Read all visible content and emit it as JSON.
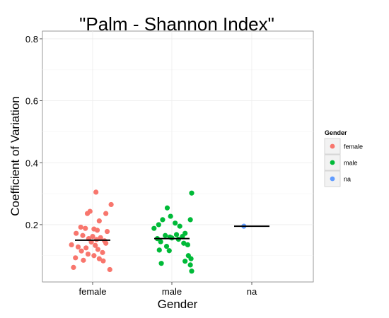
{
  "chart_data": {
    "type": "scatter",
    "title": "\"Palm - Shannon Index\"",
    "xlabel": "Gender",
    "ylabel": "Coefficient of Variation",
    "categories": [
      "female",
      "male",
      "na"
    ],
    "ylim": [
      0.015,
      0.825
    ],
    "yticks": [
      0.2,
      0.4,
      0.6,
      0.8
    ],
    "ytick_labels": [
      "0.2",
      "0.4",
      "0.6",
      "0.8"
    ],
    "grid": true,
    "legend": {
      "title": "Gender",
      "position": "right",
      "entries": [
        "female",
        "male",
        "na"
      ]
    },
    "colors": {
      "female": "#F8766D",
      "male": "#00BA38",
      "na": "#619CFF"
    },
    "series": [
      {
        "name": "female",
        "median": 0.15,
        "points": [
          {
            "x": 0.05,
            "y": 0.305
          },
          {
            "x": 0.28,
            "y": 0.265
          },
          {
            "x": -0.04,
            "y": 0.243
          },
          {
            "x": -0.08,
            "y": 0.236
          },
          {
            "x": 0.2,
            "y": 0.236
          },
          {
            "x": 0.1,
            "y": 0.212
          },
          {
            "x": -0.18,
            "y": 0.192
          },
          {
            "x": -0.11,
            "y": 0.188
          },
          {
            "x": 0.02,
            "y": 0.186
          },
          {
            "x": 0.07,
            "y": 0.182
          },
          {
            "x": 0.22,
            "y": 0.178
          },
          {
            "x": -0.25,
            "y": 0.172
          },
          {
            "x": -0.15,
            "y": 0.165
          },
          {
            "x": 0.0,
            "y": 0.162
          },
          {
            "x": 0.12,
            "y": 0.158
          },
          {
            "x": -0.06,
            "y": 0.155
          },
          {
            "x": 0.06,
            "y": 0.152
          },
          {
            "x": 0.18,
            "y": 0.148
          },
          {
            "x": -0.02,
            "y": 0.144
          },
          {
            "x": -0.32,
            "y": 0.135
          },
          {
            "x": 0.04,
            "y": 0.133
          },
          {
            "x": 0.2,
            "y": 0.14
          },
          {
            "x": -0.22,
            "y": 0.128
          },
          {
            "x": -0.1,
            "y": 0.125
          },
          {
            "x": 0.08,
            "y": 0.12
          },
          {
            "x": -0.17,
            "y": 0.115
          },
          {
            "x": 0.15,
            "y": 0.11
          },
          {
            "x": -0.07,
            "y": 0.105
          },
          {
            "x": 0.02,
            "y": 0.1
          },
          {
            "x": -0.26,
            "y": 0.093
          },
          {
            "x": 0.1,
            "y": 0.09
          },
          {
            "x": -0.14,
            "y": 0.085
          },
          {
            "x": 0.16,
            "y": 0.083
          },
          {
            "x": -0.29,
            "y": 0.062
          },
          {
            "x": 0.26,
            "y": 0.055
          }
        ]
      },
      {
        "name": "male",
        "median": 0.155,
        "points": [
          {
            "x": 0.3,
            "y": 0.302
          },
          {
            "x": -0.07,
            "y": 0.254
          },
          {
            "x": -0.02,
            "y": 0.227
          },
          {
            "x": -0.14,
            "y": 0.216
          },
          {
            "x": 0.28,
            "y": 0.216
          },
          {
            "x": 0.05,
            "y": 0.205
          },
          {
            "x": -0.2,
            "y": 0.2
          },
          {
            "x": 0.12,
            "y": 0.195
          },
          {
            "x": -0.27,
            "y": 0.188
          },
          {
            "x": 0.2,
            "y": 0.172
          },
          {
            "x": 0.07,
            "y": 0.168
          },
          {
            "x": -0.1,
            "y": 0.165
          },
          {
            "x": 0.16,
            "y": 0.162
          },
          {
            "x": -0.03,
            "y": 0.16
          },
          {
            "x": 0.0,
            "y": 0.157
          },
          {
            "x": -0.22,
            "y": 0.155
          },
          {
            "x": 0.1,
            "y": 0.153
          },
          {
            "x": -0.17,
            "y": 0.145
          },
          {
            "x": 0.18,
            "y": 0.14
          },
          {
            "x": 0.24,
            "y": 0.135
          },
          {
            "x": -0.08,
            "y": 0.13
          },
          {
            "x": -0.19,
            "y": 0.118
          },
          {
            "x": -0.04,
            "y": 0.116
          },
          {
            "x": 0.25,
            "y": 0.1
          },
          {
            "x": 0.29,
            "y": 0.09
          },
          {
            "x": 0.2,
            "y": 0.082
          },
          {
            "x": -0.16,
            "y": 0.075
          },
          {
            "x": 0.28,
            "y": 0.07
          },
          {
            "x": 0.3,
            "y": 0.05
          }
        ]
      },
      {
        "name": "na",
        "median": 0.195,
        "points": [
          {
            "x": -0.12,
            "y": 0.195
          }
        ]
      }
    ]
  }
}
